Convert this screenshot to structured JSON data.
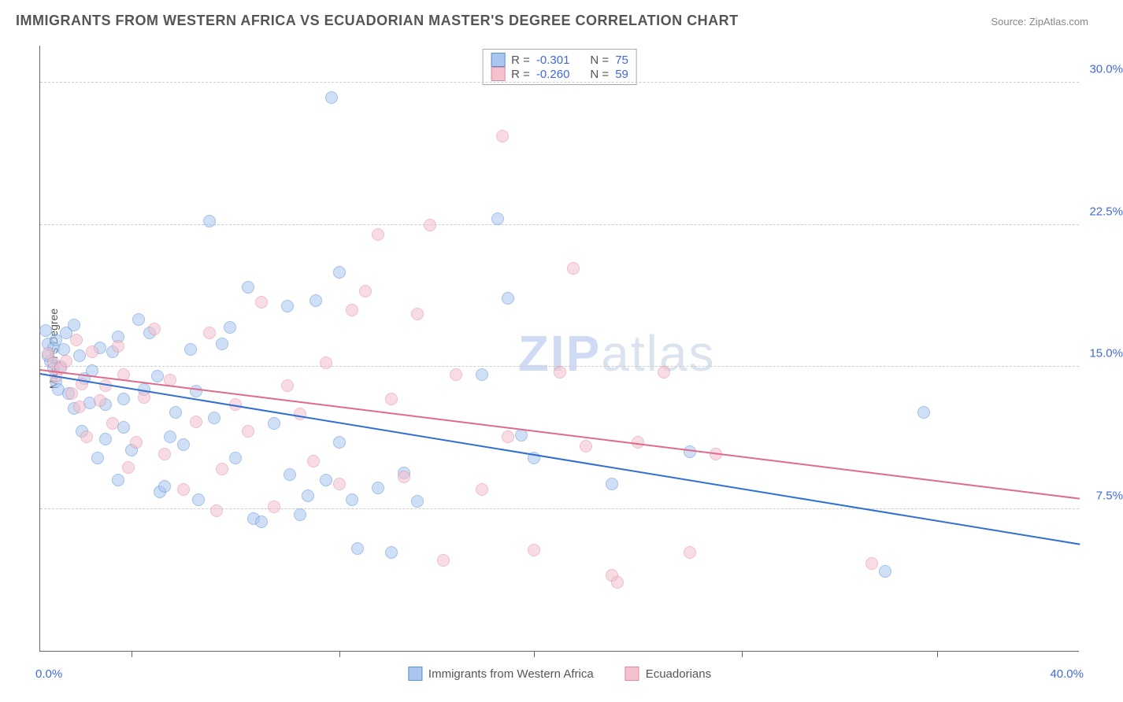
{
  "title": "IMMIGRANTS FROM WESTERN AFRICA VS ECUADORIAN MASTER'S DEGREE CORRELATION CHART",
  "source_prefix": "Source: ",
  "source_name": "ZipAtlas.com",
  "watermark_a": "ZIP",
  "watermark_b": "atlas",
  "yaxis_title": "Master's Degree",
  "chart": {
    "type": "scatter",
    "xlim": [
      0,
      40
    ],
    "ylim": [
      0,
      32
    ],
    "xaxis_min_label": "0.0%",
    "xaxis_max_label": "40.0%",
    "xtick_positions": [
      3.5,
      11.5,
      19,
      27,
      34.5
    ],
    "yticks": [
      {
        "v": 7.5,
        "label": "7.5%"
      },
      {
        "v": 15.0,
        "label": "15.0%"
      },
      {
        "v": 22.5,
        "label": "22.5%"
      },
      {
        "v": 30.0,
        "label": "30.0%"
      }
    ],
    "background_color": "#ffffff",
    "grid_color": "#cccccc",
    "tick_label_color": "#4169e1",
    "axis_color": "#666666",
    "marker_radius": 8,
    "marker_opacity": 0.55,
    "line_width": 2
  },
  "series": [
    {
      "key": "waf",
      "label": "Immigrants from Western Africa",
      "R_label": "R =",
      "R": "-0.301",
      "N_label": "N =",
      "N": "75",
      "fill": "#a9c6ef",
      "stroke": "#5a8fd6",
      "line_color": "#2e6fd1",
      "trend": {
        "x1": 0,
        "y1": 14.6,
        "x2": 40,
        "y2": 5.6
      },
      "points": [
        [
          0.2,
          16.9
        ],
        [
          0.3,
          16.2
        ],
        [
          0.4,
          15.3
        ],
        [
          0.5,
          16.0
        ],
        [
          0.6,
          16.4
        ],
        [
          0.5,
          14.9
        ],
        [
          0.6,
          14.2
        ],
        [
          0.7,
          13.8
        ],
        [
          0.3,
          15.6
        ],
        [
          0.8,
          15.0
        ],
        [
          1.0,
          16.8
        ],
        [
          1.1,
          13.6
        ],
        [
          1.3,
          17.2
        ],
        [
          1.3,
          12.8
        ],
        [
          1.5,
          15.6
        ],
        [
          1.6,
          11.6
        ],
        [
          1.7,
          14.4
        ],
        [
          1.9,
          13.1
        ],
        [
          2.2,
          10.2
        ],
        [
          2.3,
          16.0
        ],
        [
          2.5,
          13.0
        ],
        [
          2.5,
          11.2
        ],
        [
          2.8,
          15.8
        ],
        [
          3.0,
          16.6
        ],
        [
          3.2,
          13.3
        ],
        [
          3.2,
          11.8
        ],
        [
          3.5,
          10.6
        ],
        [
          3.8,
          17.5
        ],
        [
          4.0,
          13.8
        ],
        [
          4.2,
          16.8
        ],
        [
          4.5,
          14.5
        ],
        [
          4.6,
          8.4
        ],
        [
          5.0,
          11.3
        ],
        [
          5.2,
          12.6
        ],
        [
          5.5,
          10.9
        ],
        [
          5.8,
          15.9
        ],
        [
          6.0,
          13.7
        ],
        [
          6.5,
          22.7
        ],
        [
          6.7,
          12.3
        ],
        [
          7.0,
          16.2
        ],
        [
          7.3,
          17.1
        ],
        [
          7.5,
          10.2
        ],
        [
          8.0,
          19.2
        ],
        [
          8.2,
          7.0
        ],
        [
          8.5,
          6.8
        ],
        [
          9.0,
          12.0
        ],
        [
          9.5,
          18.2
        ],
        [
          9.6,
          9.3
        ],
        [
          10.0,
          7.2
        ],
        [
          10.3,
          8.2
        ],
        [
          10.6,
          18.5
        ],
        [
          11.0,
          9.0
        ],
        [
          11.2,
          29.2
        ],
        [
          11.5,
          20.0
        ],
        [
          11.5,
          11.0
        ],
        [
          12.0,
          8.0
        ],
        [
          12.2,
          5.4
        ],
        [
          13.0,
          8.6
        ],
        [
          13.5,
          5.2
        ],
        [
          14.0,
          9.4
        ],
        [
          14.5,
          7.9
        ],
        [
          17.0,
          14.6
        ],
        [
          17.6,
          22.8
        ],
        [
          18.0,
          18.6
        ],
        [
          18.5,
          11.4
        ],
        [
          19.0,
          10.2
        ],
        [
          22.0,
          8.8
        ],
        [
          25.0,
          10.5
        ],
        [
          32.5,
          4.2
        ],
        [
          34.0,
          12.6
        ],
        [
          6.1,
          8.0
        ],
        [
          3.0,
          9.0
        ],
        [
          4.8,
          8.7
        ],
        [
          2.0,
          14.8
        ],
        [
          0.9,
          15.9
        ]
      ]
    },
    {
      "key": "ecu",
      "label": "Ecuadorians",
      "R_label": "R =",
      "R": "-0.260",
      "N_label": "N =",
      "N": "59",
      "fill": "#f4c1cd",
      "stroke": "#e48aa0",
      "line_color": "#e06a8a",
      "trend": {
        "x1": 0,
        "y1": 14.8,
        "x2": 40,
        "y2": 8.0
      },
      "points": [
        [
          0.3,
          15.7
        ],
        [
          0.5,
          15.2
        ],
        [
          0.6,
          14.5
        ],
        [
          0.8,
          14.9
        ],
        [
          1.0,
          15.3
        ],
        [
          1.2,
          13.6
        ],
        [
          1.4,
          16.4
        ],
        [
          1.5,
          12.9
        ],
        [
          1.8,
          11.3
        ],
        [
          2.0,
          15.8
        ],
        [
          2.3,
          13.2
        ],
        [
          2.5,
          14.0
        ],
        [
          2.8,
          12.0
        ],
        [
          3.0,
          16.1
        ],
        [
          3.4,
          9.7
        ],
        [
          3.7,
          11.0
        ],
        [
          4.0,
          13.4
        ],
        [
          4.4,
          17.0
        ],
        [
          4.8,
          10.4
        ],
        [
          5.0,
          14.3
        ],
        [
          5.5,
          8.5
        ],
        [
          6.0,
          12.1
        ],
        [
          6.5,
          16.8
        ],
        [
          7.0,
          9.6
        ],
        [
          7.5,
          13.0
        ],
        [
          8.0,
          11.6
        ],
        [
          8.5,
          18.4
        ],
        [
          9.0,
          7.6
        ],
        [
          9.5,
          14.0
        ],
        [
          10.0,
          12.5
        ],
        [
          10.5,
          10.0
        ],
        [
          11.0,
          15.2
        ],
        [
          11.5,
          8.8
        ],
        [
          12.0,
          18.0
        ],
        [
          13.0,
          22.0
        ],
        [
          13.5,
          13.3
        ],
        [
          14.0,
          9.2
        ],
        [
          14.5,
          17.8
        ],
        [
          15.0,
          22.5
        ],
        [
          15.5,
          4.8
        ],
        [
          16.0,
          14.6
        ],
        [
          17.0,
          8.5
        ],
        [
          17.8,
          27.2
        ],
        [
          18.0,
          11.3
        ],
        [
          19.0,
          5.3
        ],
        [
          20.0,
          14.7
        ],
        [
          20.5,
          20.2
        ],
        [
          21.0,
          10.8
        ],
        [
          22.0,
          4.0
        ],
        [
          22.2,
          3.6
        ],
        [
          23.0,
          11.0
        ],
        [
          24.0,
          14.7
        ],
        [
          25.0,
          5.2
        ],
        [
          26.0,
          10.4
        ],
        [
          32.0,
          4.6
        ],
        [
          3.2,
          14.6
        ],
        [
          6.8,
          7.4
        ],
        [
          12.5,
          19.0
        ],
        [
          1.6,
          14.1
        ]
      ]
    }
  ],
  "bottom_legend": [
    {
      "series": "waf"
    },
    {
      "series": "ecu"
    }
  ]
}
